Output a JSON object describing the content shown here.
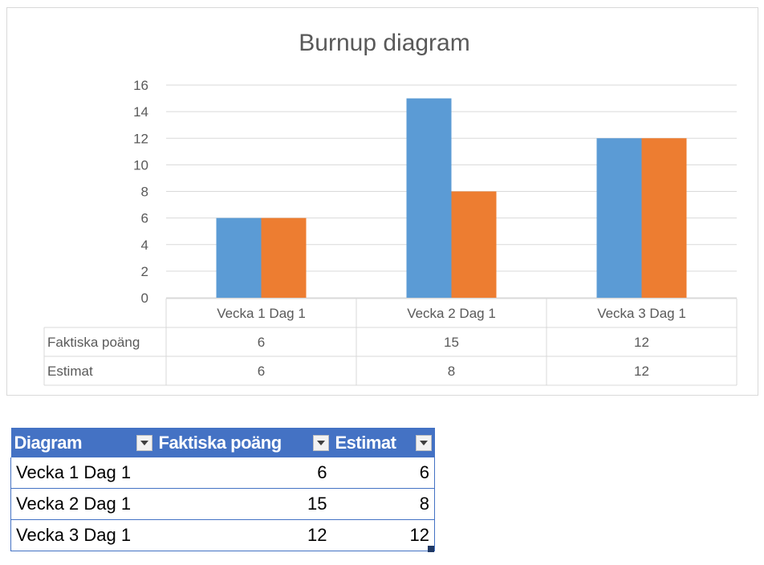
{
  "chart_data": {
    "type": "bar",
    "title": "Burnup diagram",
    "categories": [
      "Vecka 1 Dag 1",
      "Vecka 2 Dag 1",
      "Vecka 3 Dag 1"
    ],
    "series": [
      {
        "name": "Faktiska poäng",
        "values": [
          6,
          15,
          12
        ],
        "color": "#5b9bd5"
      },
      {
        "name": "Estimat",
        "values": [
          6,
          8,
          12
        ],
        "color": "#ed7d31"
      }
    ],
    "xlabel": "",
    "ylabel": "",
    "ylim": [
      0,
      16
    ],
    "yticks": [
      0,
      2,
      4,
      6,
      8,
      10,
      12,
      14,
      16
    ],
    "grid": true,
    "legend": "data-table"
  },
  "table": {
    "headers": [
      "Diagram",
      "Faktiska poäng",
      "Estimat"
    ],
    "rows": [
      [
        "Vecka 1 Dag 1",
        "6",
        "6"
      ],
      [
        "Vecka 2 Dag 1",
        "15",
        "8"
      ],
      [
        "Vecka 3 Dag 1",
        "12",
        "12"
      ]
    ]
  }
}
